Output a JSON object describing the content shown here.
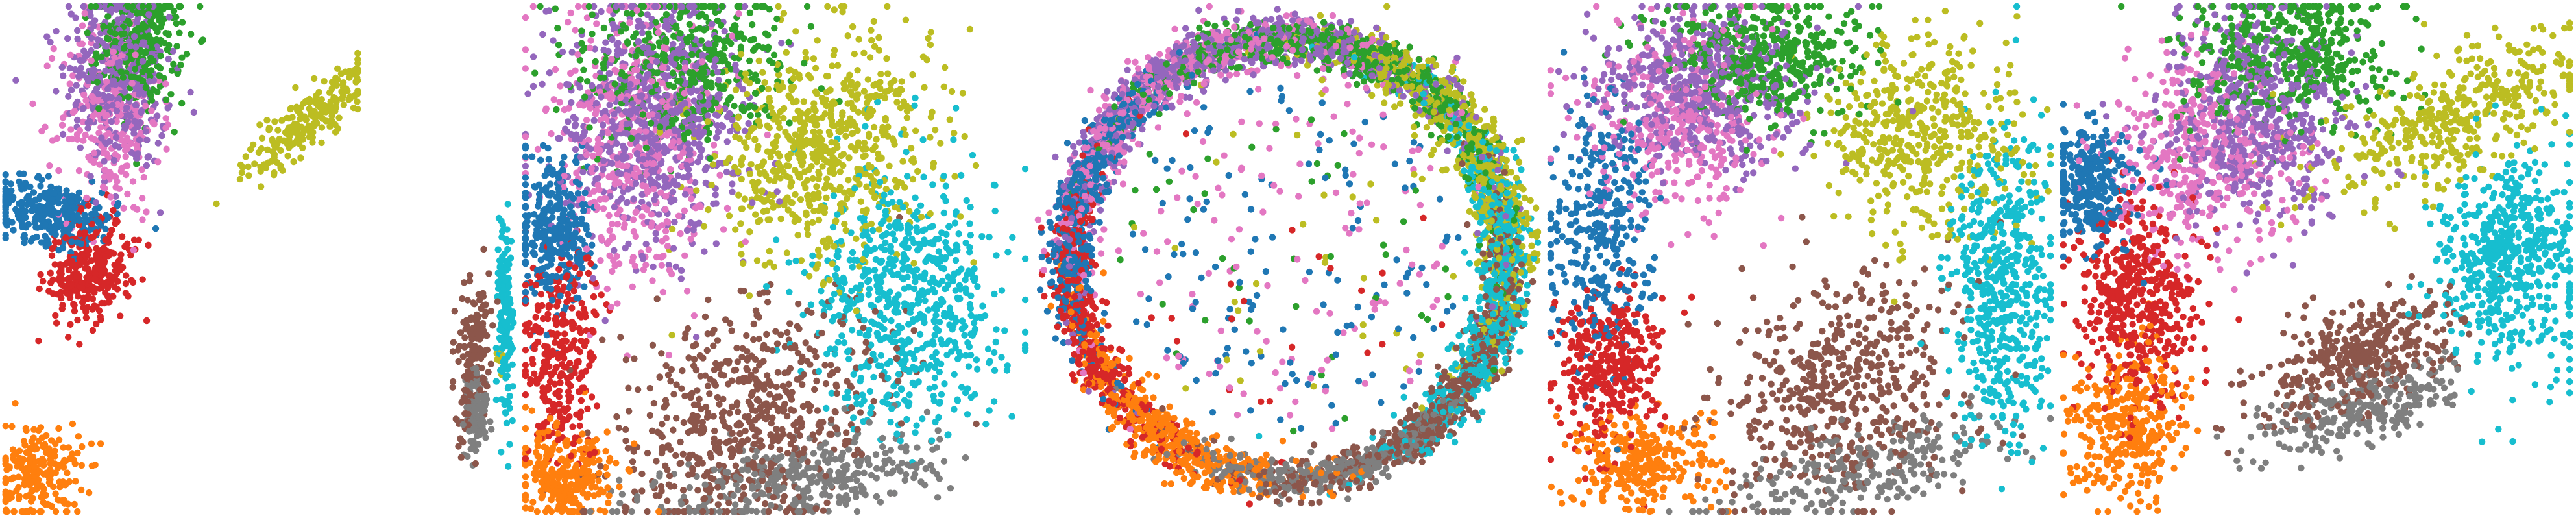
{
  "chart_data": {
    "type": "scatter",
    "title": "",
    "xlabel": "",
    "ylabel": "",
    "grid": false,
    "legend": "none",
    "axes_visible": false,
    "palette": {
      "c0": "#1f77b4",
      "c1": "#ff7f0e",
      "c2": "#2ca02c",
      "c3": "#d62728",
      "c4": "#9467bd",
      "c5": "#8c564b",
      "c6": "#e377c2",
      "c7": "#7f7f7f",
      "c8": "#bcbd22",
      "c9": "#17becf"
    },
    "panels": [
      {
        "id": "p1",
        "xlim": [
          0,
          1
        ],
        "ylim": [
          0,
          1
        ],
        "clusters": [
          {
            "color": "c4",
            "n": 420,
            "cx": 0.32,
            "cy": 0.86,
            "sx": 0.07,
            "sy": 0.1,
            "r": 0.2
          },
          {
            "color": "c2",
            "n": 320,
            "cx": 0.38,
            "cy": 0.92,
            "sx": 0.06,
            "sy": 0.06,
            "r": 0.1
          },
          {
            "color": "c6",
            "n": 260,
            "cx": 0.3,
            "cy": 0.78,
            "sx": 0.07,
            "sy": 0.1,
            "r": 0.0
          },
          {
            "color": "c0",
            "n": 320,
            "cx": 0.14,
            "cy": 0.59,
            "sx": 0.09,
            "sy": 0.03,
            "r": -0.15
          },
          {
            "color": "c3",
            "n": 320,
            "cx": 0.24,
            "cy": 0.48,
            "sx": 0.06,
            "sy": 0.05,
            "r": 0.3
          },
          {
            "color": "c8",
            "n": 220,
            "cx": 0.85,
            "cy": 0.77,
            "sx": 0.1,
            "sy": 0.025,
            "r": 0.55
          },
          {
            "color": "c1",
            "n": 220,
            "cx": 0.1,
            "cy": 0.08,
            "sx": 0.06,
            "sy": 0.05,
            "r": 0.0
          }
        ]
      },
      {
        "id": "p2",
        "xlim": [
          0,
          1
        ],
        "ylim": [
          0,
          1
        ],
        "clusters": [
          {
            "color": "c9",
            "n": 170,
            "cx": 0.93,
            "cy": 0.38,
            "sx": 0.025,
            "sy": 0.1,
            "r": 0.0
          },
          {
            "color": "c5",
            "n": 160,
            "cx": 0.72,
            "cy": 0.3,
            "sx": 0.05,
            "sy": 0.08,
            "r": -0.3
          },
          {
            "color": "c7",
            "n": 120,
            "cx": 0.74,
            "cy": 0.2,
            "sx": 0.04,
            "sy": 0.04,
            "r": 0.0
          },
          {
            "color": "c8",
            "n": 10,
            "cx": 0.9,
            "cy": 0.3,
            "sx": 0.02,
            "sy": 0.02,
            "r": 0.0
          }
        ]
      },
      {
        "id": "p3",
        "xlim": [
          0,
          1
        ],
        "ylim": [
          0,
          1
        ],
        "clusters": [
          {
            "color": "c4",
            "n": 700,
            "cx": 0.26,
            "cy": 0.78,
            "sx": 0.09,
            "sy": 0.12,
            "r": 0.0
          },
          {
            "color": "c2",
            "n": 450,
            "cx": 0.32,
            "cy": 0.88,
            "sx": 0.1,
            "sy": 0.08,
            "r": 0.0
          },
          {
            "color": "c6",
            "n": 450,
            "cx": 0.22,
            "cy": 0.72,
            "sx": 0.08,
            "sy": 0.14,
            "r": 0.0
          },
          {
            "color": "c8",
            "n": 650,
            "cx": 0.6,
            "cy": 0.72,
            "sx": 0.12,
            "sy": 0.1,
            "r": 0.4
          },
          {
            "color": "c0",
            "n": 300,
            "cx": 0.06,
            "cy": 0.55,
            "sx": 0.04,
            "sy": 0.08,
            "r": 0.0
          },
          {
            "color": "c3",
            "n": 300,
            "cx": 0.07,
            "cy": 0.32,
            "sx": 0.04,
            "sy": 0.1,
            "r": 0.0
          },
          {
            "color": "c1",
            "n": 260,
            "cx": 0.08,
            "cy": 0.08,
            "sx": 0.05,
            "sy": 0.05,
            "r": 0.0
          },
          {
            "color": "c9",
            "n": 650,
            "cx": 0.76,
            "cy": 0.42,
            "sx": 0.09,
            "sy": 0.12,
            "r": 0.0
          },
          {
            "color": "c5",
            "n": 600,
            "cx": 0.45,
            "cy": 0.2,
            "sx": 0.14,
            "sy": 0.1,
            "r": 0.5
          },
          {
            "color": "c7",
            "n": 350,
            "cx": 0.55,
            "cy": 0.07,
            "sx": 0.15,
            "sy": 0.04,
            "r": 0.15
          }
        ]
      },
      {
        "id": "p4",
        "xlim": [
          0,
          1
        ],
        "ylim": [
          0,
          1
        ],
        "ring_center": [
          0.5,
          0.5
        ],
        "ring_radius": [
          0.43,
          0.43
        ],
        "clusters": [
          {
            "color": "c4",
            "n": 700,
            "angle": 100,
            "spread": 40,
            "band": 0.06
          },
          {
            "color": "c2",
            "n": 650,
            "angle": 75,
            "spread": 30,
            "band": 0.05
          },
          {
            "color": "c6",
            "n": 450,
            "angle": 120,
            "spread": 35,
            "band": 0.07
          },
          {
            "color": "c8",
            "n": 600,
            "angle": 30,
            "spread": 28,
            "band": 0.07
          },
          {
            "color": "c9",
            "n": 700,
            "angle": -5,
            "spread": 28,
            "band": 0.06
          },
          {
            "color": "c5",
            "n": 600,
            "angle": -40,
            "spread": 30,
            "band": 0.05
          },
          {
            "color": "c7",
            "n": 350,
            "angle": -75,
            "spread": 22,
            "band": 0.04
          },
          {
            "color": "c1",
            "n": 450,
            "angle": -125,
            "spread": 20,
            "band": 0.06
          },
          {
            "color": "c3",
            "n": 450,
            "angle": -160,
            "spread": 25,
            "band": 0.05
          },
          {
            "color": "c0",
            "n": 450,
            "angle": 165,
            "spread": 22,
            "band": 0.05
          }
        ],
        "interior": [
          {
            "color": "c0",
            "n": 130
          },
          {
            "color": "c6",
            "n": 110
          },
          {
            "color": "c2",
            "n": 40
          },
          {
            "color": "c8",
            "n": 30
          },
          {
            "color": "c3",
            "n": 20
          }
        ]
      },
      {
        "id": "p5",
        "xlim": [
          0,
          1
        ],
        "ylim": [
          0,
          1
        ],
        "clusters": [
          {
            "color": "c4",
            "n": 550,
            "cx": 0.3,
            "cy": 0.84,
            "sx": 0.1,
            "sy": 0.08,
            "r": 0.0
          },
          {
            "color": "c2",
            "n": 450,
            "cx": 0.42,
            "cy": 0.9,
            "sx": 0.1,
            "sy": 0.06,
            "r": 0.0
          },
          {
            "color": "c6",
            "n": 350,
            "cx": 0.25,
            "cy": 0.76,
            "sx": 0.09,
            "sy": 0.1,
            "r": 0.0
          },
          {
            "color": "c8",
            "n": 450,
            "cx": 0.75,
            "cy": 0.74,
            "sx": 0.1,
            "sy": 0.1,
            "r": 0.5
          },
          {
            "color": "c0",
            "n": 330,
            "cx": 0.1,
            "cy": 0.55,
            "sx": 0.05,
            "sy": 0.12,
            "r": 0.0
          },
          {
            "color": "c3",
            "n": 320,
            "cx": 0.12,
            "cy": 0.28,
            "sx": 0.05,
            "sy": 0.08,
            "r": 0.0
          },
          {
            "color": "c1",
            "n": 300,
            "cx": 0.18,
            "cy": 0.1,
            "sx": 0.07,
            "sy": 0.05,
            "r": 0.0
          },
          {
            "color": "c9",
            "n": 500,
            "cx": 0.9,
            "cy": 0.44,
            "sx": 0.05,
            "sy": 0.15,
            "r": 0.0
          },
          {
            "color": "c5",
            "n": 500,
            "cx": 0.58,
            "cy": 0.25,
            "sx": 0.12,
            "sy": 0.1,
            "r": 0.6
          },
          {
            "color": "c7",
            "n": 250,
            "cx": 0.63,
            "cy": 0.09,
            "sx": 0.14,
            "sy": 0.04,
            "r": 0.25
          }
        ]
      },
      {
        "id": "p6",
        "xlim": [
          0,
          1
        ],
        "ylim": [
          0,
          1
        ],
        "clusters": [
          {
            "color": "c4",
            "n": 550,
            "cx": 0.38,
            "cy": 0.78,
            "sx": 0.09,
            "sy": 0.1,
            "r": 0.0
          },
          {
            "color": "c2",
            "n": 450,
            "cx": 0.45,
            "cy": 0.9,
            "sx": 0.1,
            "sy": 0.07,
            "r": 0.0
          },
          {
            "color": "c6",
            "n": 400,
            "cx": 0.28,
            "cy": 0.7,
            "sx": 0.09,
            "sy": 0.1,
            "r": 0.0
          },
          {
            "color": "c8",
            "n": 400,
            "cx": 0.77,
            "cy": 0.78,
            "sx": 0.14,
            "sy": 0.06,
            "r": 0.45
          },
          {
            "color": "c0",
            "n": 300,
            "cx": 0.06,
            "cy": 0.65,
            "sx": 0.04,
            "sy": 0.06,
            "r": 0.0
          },
          {
            "color": "c3",
            "n": 450,
            "cx": 0.15,
            "cy": 0.42,
            "sx": 0.06,
            "sy": 0.1,
            "r": 0.0
          },
          {
            "color": "c1",
            "n": 350,
            "cx": 0.13,
            "cy": 0.17,
            "sx": 0.06,
            "sy": 0.08,
            "r": 0.0
          },
          {
            "color": "c9",
            "n": 550,
            "cx": 0.88,
            "cy": 0.5,
            "sx": 0.07,
            "sy": 0.1,
            "r": 0.0
          },
          {
            "color": "c5",
            "n": 400,
            "cx": 0.58,
            "cy": 0.31,
            "sx": 0.1,
            "sy": 0.05,
            "r": 0.4
          },
          {
            "color": "c7",
            "n": 250,
            "cx": 0.58,
            "cy": 0.2,
            "sx": 0.1,
            "sy": 0.035,
            "r": 0.3
          }
        ]
      }
    ]
  }
}
